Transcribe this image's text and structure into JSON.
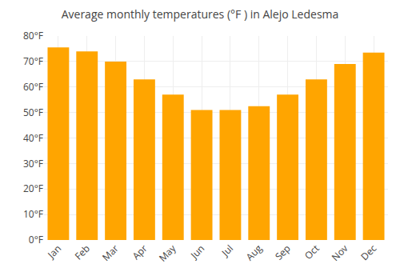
{
  "chart_data": {
    "type": "bar",
    "title": "Average monthly temperatures (°F ) in Alejo Ledesma",
    "categories": [
      "Jan",
      "Feb",
      "Mar",
      "Apr",
      "May",
      "Jun",
      "Jul",
      "Aug",
      "Sep",
      "Oct",
      "Nov",
      "Dec"
    ],
    "values": [
      75.5,
      74.0,
      70.0,
      63.0,
      57.0,
      51.0,
      51.0,
      52.5,
      57.0,
      63.0,
      69.0,
      73.5
    ],
    "color": "#FFA500",
    "ylim": [
      0,
      80
    ],
    "yticks": [
      {
        "value": 0,
        "label": "0°F"
      },
      {
        "value": 10,
        "label": "10°F"
      },
      {
        "value": 20,
        "label": "20°F"
      },
      {
        "value": 30,
        "label": "30°F"
      },
      {
        "value": 40,
        "label": "40°F"
      },
      {
        "value": 50,
        "label": "50°F"
      },
      {
        "value": 60,
        "label": "60°F"
      },
      {
        "value": 70,
        "label": "70°F"
      },
      {
        "value": 80,
        "label": "80°F"
      }
    ],
    "grid": true
  }
}
